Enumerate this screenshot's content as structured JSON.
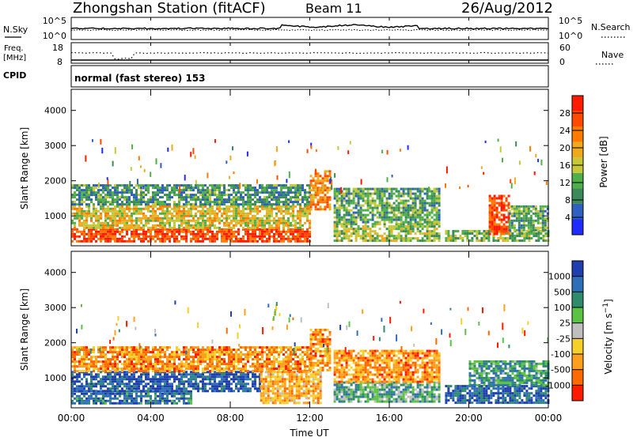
{
  "header": {
    "station": "Zhongshan Station (fitACF)",
    "beam": "Beam 11",
    "date": "26/Aug/2012"
  },
  "noise_panel": {
    "left_label": "N.Sky",
    "right_label": "N.Search",
    "left_ticks": [
      "10^5",
      "10^0"
    ],
    "right_ticks": [
      "10^5",
      "10^0"
    ]
  },
  "freq_panel": {
    "left_label_1": "Freq.",
    "left_label_2": "[MHz]",
    "right_label": "Nave",
    "left_ticks": [
      "18",
      "8"
    ],
    "right_ticks": [
      "60",
      "0"
    ]
  },
  "cpid": {
    "label": "CPID",
    "text": "normal (fast stereo)  153"
  },
  "colors": {
    "power": [
      "#1f2bff",
      "#2f5fbf",
      "#3c8a5a",
      "#4fb04a",
      "#c6c83a",
      "#f0a91c",
      "#ff7a00",
      "#ff4a00",
      "#ff1a00"
    ],
    "velocity": [
      "#1f3fae",
      "#2f6fb8",
      "#2e8b6b",
      "#5cc243",
      "#bfbfbf",
      "#f6cf28",
      "#ff9f1c",
      "#ff6a00",
      "#ff1a00"
    ]
  },
  "chart_data": [
    {
      "type": "heatmap",
      "id": "power",
      "ylabel": "Slant Range [km]",
      "yticks": [
        "1000",
        "2000",
        "3000",
        "4000"
      ],
      "ylim": [
        150,
        4600
      ],
      "xlim": [
        0,
        24
      ],
      "colorbar": {
        "label": "Power [dB]",
        "ticks": [
          "4",
          "8",
          "12",
          "16",
          "20",
          "24",
          "28"
        ],
        "range": [
          0,
          32
        ]
      },
      "bands": [
        {
          "x0": 0.0,
          "x1": 12.0,
          "r0": 300,
          "r1": 650,
          "level": 0.85
        },
        {
          "x0": 0.0,
          "x1": 12.0,
          "r0": 650,
          "r1": 1300,
          "level": 0.55
        },
        {
          "x0": 0.0,
          "x1": 12.0,
          "r0": 1300,
          "r1": 1900,
          "level": 0.3
        },
        {
          "x0": 12.0,
          "x1": 13.0,
          "r0": 1200,
          "r1": 2300,
          "level": 0.7
        },
        {
          "x0": 13.2,
          "x1": 18.5,
          "r0": 300,
          "r1": 800,
          "level": 0.45
        },
        {
          "x0": 13.2,
          "x1": 18.5,
          "r0": 800,
          "r1": 1800,
          "level": 0.35
        },
        {
          "x0": 18.8,
          "x1": 24.0,
          "r0": 300,
          "r1": 600,
          "level": 0.4
        },
        {
          "x0": 21.0,
          "x1": 22.0,
          "r0": 500,
          "r1": 1600,
          "level": 0.85
        },
        {
          "x0": 22.0,
          "x1": 24.0,
          "r0": 600,
          "r1": 1300,
          "level": 0.35
        }
      ]
    },
    {
      "type": "heatmap",
      "id": "velocity",
      "ylabel": "Slant Range [km]",
      "yticks": [
        "1000",
        "2000",
        "3000",
        "4000"
      ],
      "ylim": [
        150,
        4600
      ],
      "xlim": [
        0,
        24
      ],
      "xticks": [
        "00:00",
        "04:00",
        "08:00",
        "12:00",
        "16:00",
        "20:00",
        "00:00"
      ],
      "xlabel": "Time UT",
      "colorbar": {
        "label": "Velocity [m s^-1]",
        "ticks": [
          "1000",
          "500",
          "100",
          "25",
          "-25",
          "-100",
          "-500",
          "-1000"
        ]
      },
      "bands": [
        {
          "x0": 0.0,
          "x1": 6.0,
          "r0": 300,
          "r1": 650,
          "level": 0.2
        },
        {
          "x0": 0.0,
          "x1": 9.5,
          "r0": 650,
          "r1": 1200,
          "level": 0.1
        },
        {
          "x0": 0.0,
          "x1": 12.0,
          "r0": 1200,
          "r1": 1900,
          "level": 0.75
        },
        {
          "x0": 9.5,
          "x1": 12.5,
          "r0": 300,
          "r1": 1200,
          "level": 0.7
        },
        {
          "x0": 12.0,
          "x1": 13.0,
          "r0": 1200,
          "r1": 2400,
          "level": 0.75
        },
        {
          "x0": 13.2,
          "x1": 18.5,
          "r0": 300,
          "r1": 900,
          "level": 0.35
        },
        {
          "x0": 13.2,
          "x1": 18.5,
          "r0": 900,
          "r1": 1800,
          "level": 0.75
        },
        {
          "x0": 18.8,
          "x1": 24.0,
          "r0": 300,
          "r1": 800,
          "level": 0.15
        },
        {
          "x0": 20.0,
          "x1": 24.0,
          "r0": 800,
          "r1": 1500,
          "level": 0.3
        }
      ]
    }
  ]
}
